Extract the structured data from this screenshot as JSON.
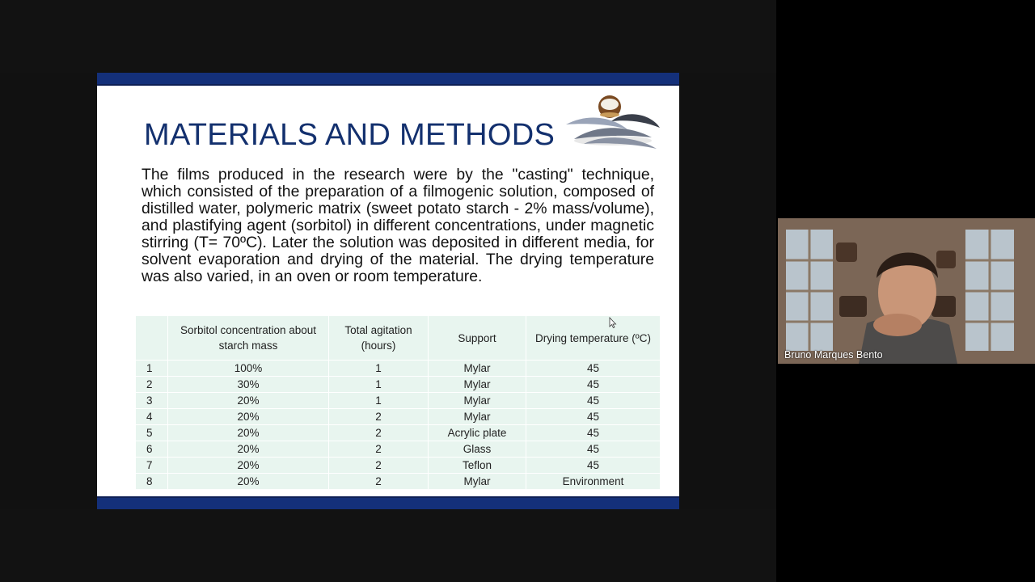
{
  "slide": {
    "title": "MATERIALS AND METHODS",
    "body": "The films produced in the research were by the \"casting\" technique, which consisted of the preparation of a filmogenic solution, composed of distilled water, polymeric matrix (sweet potato starch - 2% mass/volume), and plastifying agent (sorbitol) in different concentrations, under magnetic stirring (T= 70ºC). Later the solution was deposited in different media, for solvent evaporation and drying of the material. The drying temperature was also varied, in an oven or room temperature.",
    "table": {
      "headers": {
        "sorbitol": "Sorbitol concentration about starch mass",
        "agitation": "Total agitation (hours)",
        "support": "Support",
        "temperature": "Drying temperature (ºC)"
      },
      "rows": [
        {
          "n": "1",
          "sorbitol": "100%",
          "agitation": "1",
          "support": "Mylar",
          "temperature": "45"
        },
        {
          "n": "2",
          "sorbitol": "30%",
          "agitation": "1",
          "support": "Mylar",
          "temperature": "45"
        },
        {
          "n": "3",
          "sorbitol": "20%",
          "agitation": "1",
          "support": "Mylar",
          "temperature": "45"
        },
        {
          "n": "4",
          "sorbitol": "20%",
          "agitation": "2",
          "support": "Mylar",
          "temperature": "45"
        },
        {
          "n": "5",
          "sorbitol": "20%",
          "agitation": "2",
          "support": "Acrylic plate",
          "temperature": "45"
        },
        {
          "n": "6",
          "sorbitol": "20%",
          "agitation": "2",
          "support": "Glass",
          "temperature": "45"
        },
        {
          "n": "7",
          "sorbitol": "20%",
          "agitation": "2",
          "support": "Teflon",
          "temperature": "45"
        },
        {
          "n": "8",
          "sorbitol": "20%",
          "agitation": "2",
          "support": "Mylar",
          "temperature": "Environment"
        }
      ]
    }
  },
  "participant": {
    "name": "Bruno Marques Bento"
  },
  "colors": {
    "slide_accent": "#14307a",
    "table_background": "#e8f5ef"
  }
}
